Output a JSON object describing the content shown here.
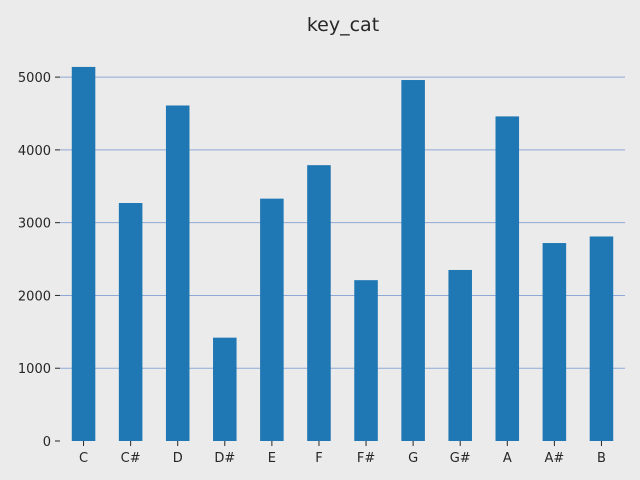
{
  "chart_data": {
    "type": "bar",
    "title": "key_cat",
    "xlabel": "",
    "ylabel": "",
    "categories": [
      "C",
      "C#",
      "D",
      "D#",
      "E",
      "F",
      "F#",
      "G",
      "G#",
      "A",
      "A#",
      "B"
    ],
    "values": [
      5140,
      3270,
      4610,
      1420,
      3330,
      3790,
      2210,
      4960,
      2350,
      4460,
      2720,
      2810
    ],
    "ylim": [
      0,
      5400
    ],
    "yticks": [
      0,
      1000,
      2000,
      3000,
      4000,
      5000
    ],
    "grid": "y",
    "color": "#1f77b4"
  }
}
